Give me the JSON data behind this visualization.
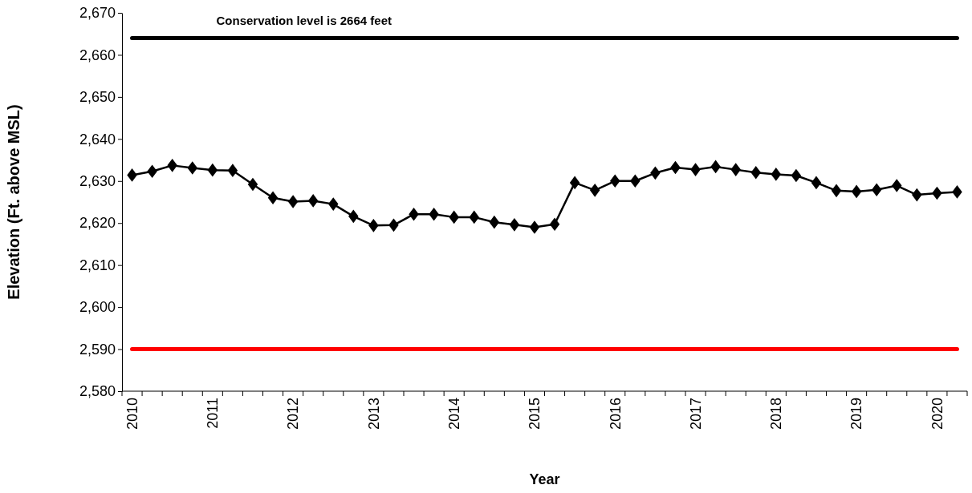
{
  "chart_data": {
    "type": "line",
    "xlabel": "Year",
    "ylabel": "Elevation (Ft. above MSL)",
    "categories": [
      "2010",
      null,
      null,
      null,
      "2011",
      null,
      null,
      null,
      "2012",
      null,
      null,
      null,
      "2013",
      null,
      null,
      null,
      "2014",
      null,
      null,
      null,
      "2015",
      null,
      null,
      null,
      "2016",
      null,
      null,
      null,
      "2017",
      null,
      null,
      null,
      "2018",
      null,
      null,
      null,
      "2019",
      null,
      null,
      null,
      "2020",
      null
    ],
    "series": [
      {
        "color": "#000000",
        "values": [
          2631.4,
          2632.3,
          2633.7,
          2633.1,
          2632.6,
          2632.5,
          2629.2,
          2626.0,
          2625.1,
          2625.3,
          2624.5,
          2621.6,
          2619.4,
          2619.5,
          2622.1,
          2622.1,
          2621.4,
          2621.4,
          2620.2,
          2619.6,
          2619.0,
          2619.7,
          2629.6,
          2627.8,
          2630.0,
          2630.0,
          2631.9,
          2633.2,
          2632.7,
          2633.4,
          2632.7,
          2632.0,
          2631.6,
          2631.3,
          2629.6,
          2627.7,
          2627.5,
          2627.9,
          2628.9,
          2626.7,
          2627.1,
          2627.4
        ]
      }
    ],
    "ylim": [
      2580,
      2670
    ],
    "yticks": [
      {
        "value": 2580,
        "label": "2,580"
      },
      {
        "value": 2590,
        "label": "2,590"
      },
      {
        "value": 2600,
        "label": "2,600"
      },
      {
        "value": 2610,
        "label": "2,610"
      },
      {
        "value": 2620,
        "label": "2,620"
      },
      {
        "value": 2630,
        "label": "2,630"
      },
      {
        "value": 2640,
        "label": "2,640"
      },
      {
        "value": 2650,
        "label": "2,650"
      },
      {
        "value": 2660,
        "label": "2,660"
      },
      {
        "value": 2670,
        "label": "2,670"
      }
    ],
    "ref_lines": [
      {
        "axis": "y",
        "value": 2664,
        "label": "Conservation level is 2664 feet",
        "color": "#000000"
      },
      {
        "axis": "y",
        "value": 2590,
        "color": "#ff0000"
      }
    ],
    "marker": "diamond",
    "line_style": "solid",
    "grid": false
  }
}
